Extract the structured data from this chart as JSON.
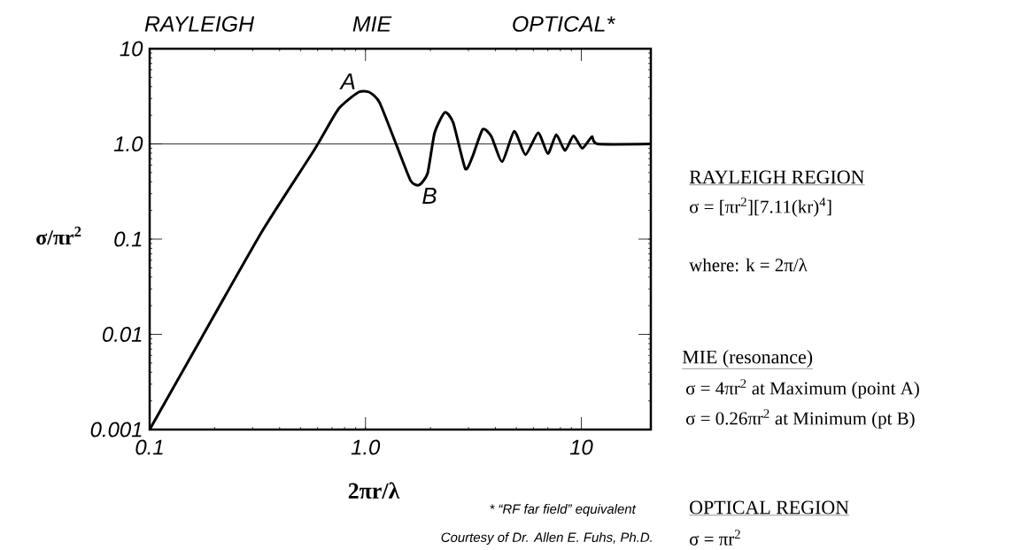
{
  "chart_data": {
    "type": "line",
    "xlabel": "2πr/λ",
    "ylabel": "σ/πr$^{2}$",
    "log": "xy",
    "xlim": [
      0.1,
      21
    ],
    "ylim": [
      0.001,
      10
    ],
    "xticks": [
      0.1,
      {
        "value": 1,
        "label": "1.0"
      },
      10
    ],
    "yticks": [
      0.001,
      0.01,
      0.1,
      {
        "value": 1,
        "label": "1.0"
      },
      10
    ],
    "series": [
      {
        "color": "#000000",
        "x": [
          0.1,
          0.173,
          0.335,
          0.58,
          0.75,
          0.93,
          1.04,
          1.16,
          1.4,
          1.62,
          1.77,
          1.94,
          2.09,
          2.33,
          2.55,
          2.9,
          3.13,
          3.49,
          3.83,
          4.3,
          4.89,
          5.51,
          6.31,
          7.0,
          7.66,
          8.4,
          9.2,
          10.1,
          11.2,
          11.9,
          21
        ],
        "values": [
          0.001,
          0.009,
          0.125,
          0.87,
          2.33,
          3.5,
          3.5,
          2.74,
          0.94,
          0.41,
          0.37,
          0.49,
          1.3,
          2.14,
          1.67,
          0.55,
          0.73,
          1.42,
          1.2,
          0.65,
          1.36,
          0.77,
          1.31,
          0.79,
          1.25,
          0.85,
          1.22,
          0.9,
          1.19,
          1.0,
          1.0
        ]
      }
    ],
    "ref_lines": [
      {
        "axis": "y",
        "value": 1,
        "color": "#000000"
      }
    ],
    "annotations": [
      {
        "text": "A",
        "x": 0.93,
        "y": 3.5
      },
      {
        "text": "B",
        "x": 1.77,
        "y": 0.37
      },
      "RAYLEIGH",
      "MIE",
      "OPTICAL*",
      "RAYLEIGH REGION",
      "σ = [πr$^{2}$][7.11(kr)$^{4}$]",
      "where: k = 2π/λ",
      "MIE (resonance)",
      "σ = 4πr$^{2}$  at Maximum (point A)",
      "σ = 0.26πr$^{2}$  at Minimum (pt B)",
      "OPTICAL REGION",
      "σ = πr$^{2}$",
      "* “RF far field” equivalent",
      "Courtesy of Dr. Allen E. Fuhs, Ph.D."
    ]
  }
}
